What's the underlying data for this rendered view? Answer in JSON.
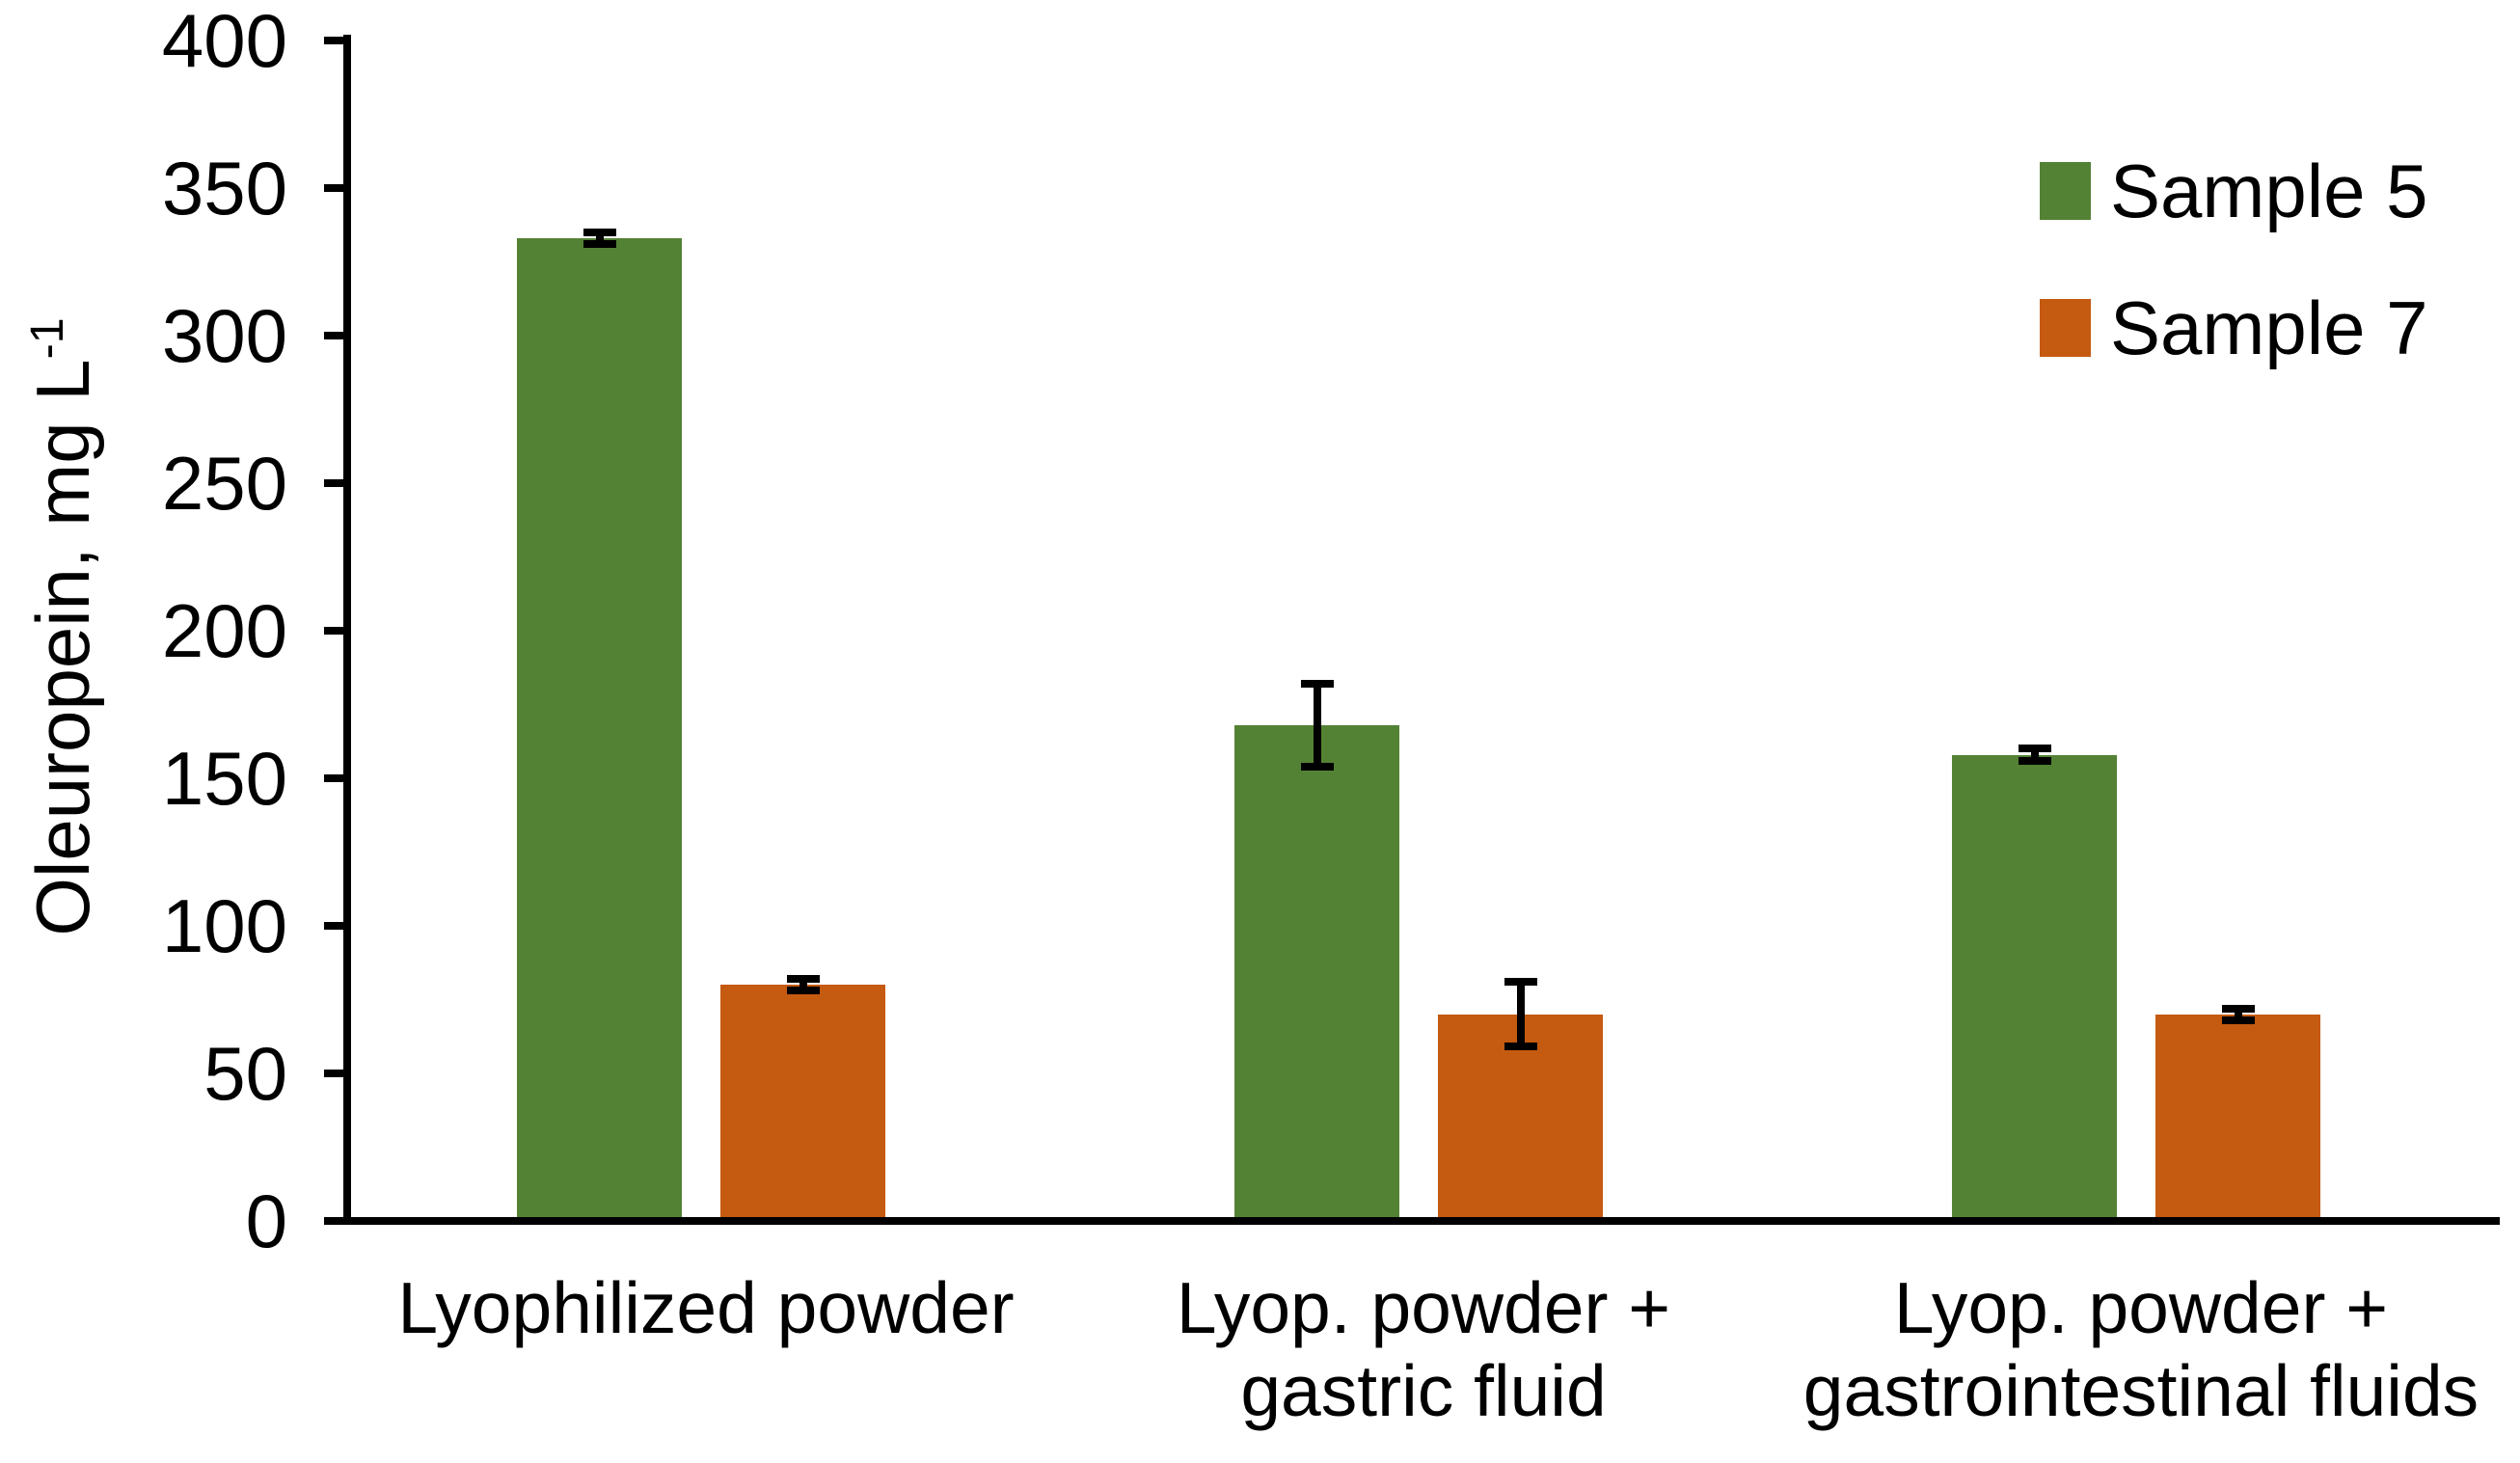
{
  "chart_data": {
    "type": "bar",
    "title": "",
    "ylabel": "Oleuropein, mg L-1",
    "ylabel_main": "Oleuropein, mg L",
    "ylabel_sup": "-1",
    "ylim": [
      0,
      400
    ],
    "yticks": [
      0,
      50,
      100,
      150,
      200,
      250,
      300,
      350,
      400
    ],
    "grid": false,
    "legend_position": "top-right",
    "background_color": "#FFFFFF",
    "axis_color": "#000000",
    "categories": [
      "Lyophilized powder",
      "Lyop. powder + gastric fluid",
      "Lyop. powder + gastrointestinal fluids"
    ],
    "category_label_lines": [
      [
        "Lyophilized powder"
      ],
      [
        "Lyop. powder +",
        "gastric fluid"
      ],
      [
        "Lyop. powder +",
        "gastrointestinal fluids"
      ]
    ],
    "series": [
      {
        "name": "Sample 5",
        "color": "#548235",
        "values": [
          333,
          168,
          158
        ],
        "errors": [
          2,
          14,
          2
        ]
      },
      {
        "name": "Sample 7",
        "color": "#C55A11",
        "values": [
          80,
          70,
          70
        ],
        "errors": [
          2,
          11,
          2
        ]
      }
    ]
  }
}
